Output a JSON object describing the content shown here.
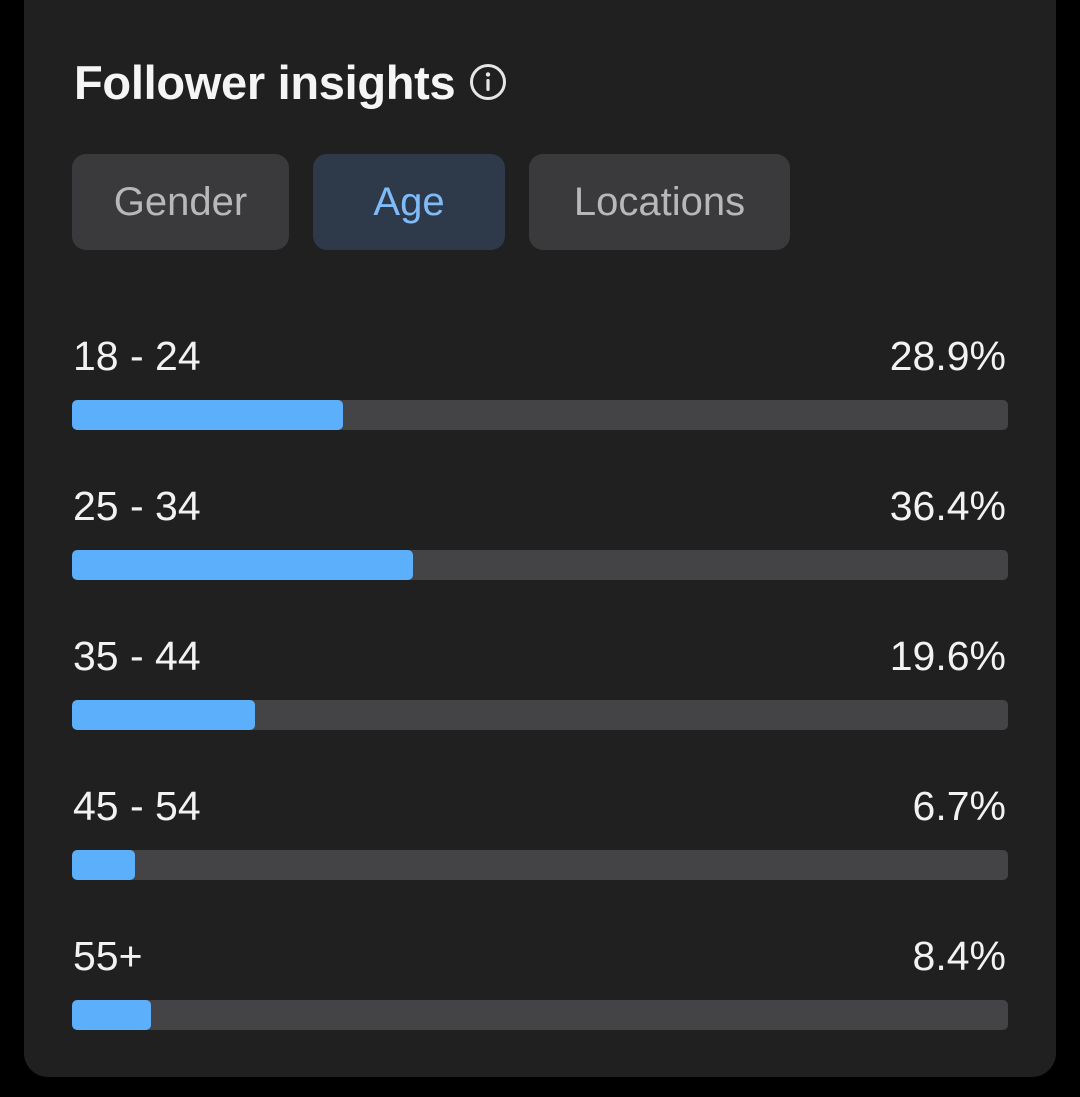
{
  "header": {
    "title": "Follower insights",
    "info_icon": "info-circle-icon"
  },
  "tabs": [
    {
      "label": "Gender",
      "selected": false
    },
    {
      "label": "Age",
      "selected": true
    },
    {
      "label": "Locations",
      "selected": false
    }
  ],
  "colors": {
    "accent": "#5cb0fb",
    "selected_tab_text": "#7fbcf7",
    "selected_tab_bg": "#2e3a4a",
    "track": "#444446",
    "card": "#202020"
  },
  "age_rows": [
    {
      "label": "18 - 24",
      "value": "28.9%",
      "fill_fraction": 0.29
    },
    {
      "label": "25 - 34",
      "value": "36.4%",
      "fill_fraction": 0.364
    },
    {
      "label": "35 - 44",
      "value": "19.6%",
      "fill_fraction": 0.196
    },
    {
      "label": "45 - 54",
      "value": "6.7%",
      "fill_fraction": 0.067
    },
    {
      "label": "55+",
      "value": "8.4%",
      "fill_fraction": 0.084
    }
  ]
}
